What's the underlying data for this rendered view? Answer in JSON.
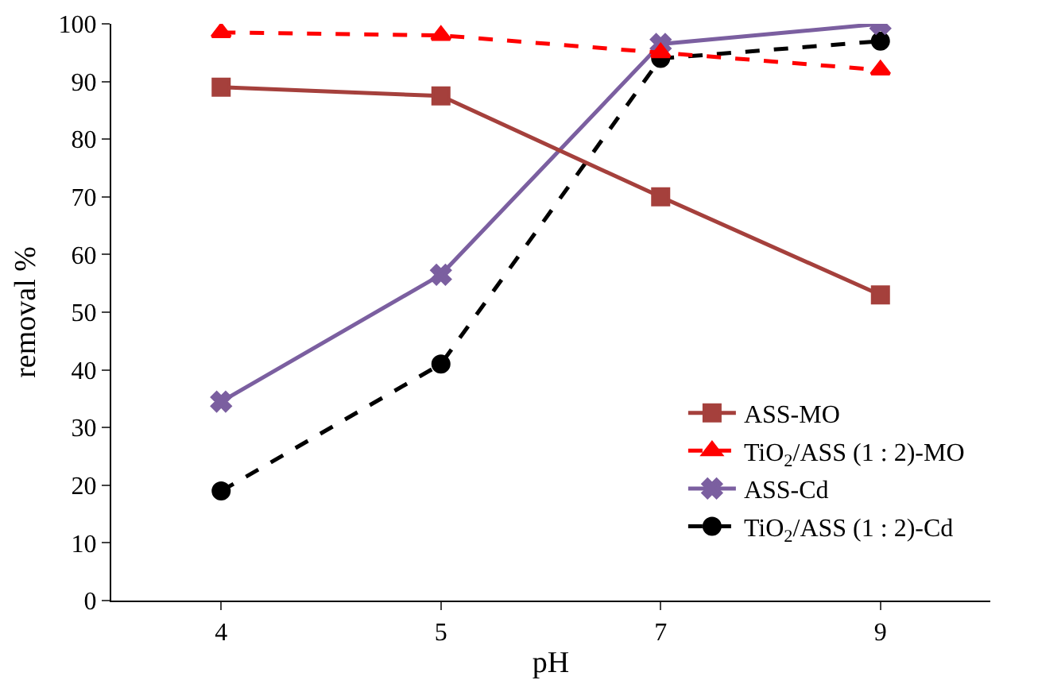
{
  "chart_data": {
    "type": "line",
    "xlabel": "pH",
    "ylabel": "removal %",
    "categories": [
      "4",
      "5",
      "7",
      "9"
    ],
    "series": [
      {
        "name": "ASS-MO",
        "color": "#a5403c",
        "values": [
          89,
          87.5,
          70,
          53
        ],
        "marker": "square",
        "line_style": "solid"
      },
      {
        "name": "TiO$_{2}$/ASS (1 : 2)-MO",
        "color": "#ff0000",
        "values": [
          98.5,
          98,
          95,
          92
        ],
        "marker": "triangle",
        "line_style": "dashed"
      },
      {
        "name": "ASS-Cd",
        "color": "#7b5fa0",
        "values": [
          34.5,
          56.5,
          96.5,
          100
        ],
        "marker": "cross",
        "line_style": "solid"
      },
      {
        "name": "TiO$_{2}$/ASS (1 : 2)-Cd",
        "color": "#000000",
        "values": [
          19,
          41,
          94,
          97
        ],
        "marker": "circle",
        "line_style": "dashed"
      }
    ],
    "ylim": [
      0,
      100
    ],
    "yticks": [
      0,
      10,
      20,
      30,
      40,
      50,
      60,
      70,
      80,
      90,
      100
    ],
    "grid": false,
    "legend": "bottom right"
  }
}
